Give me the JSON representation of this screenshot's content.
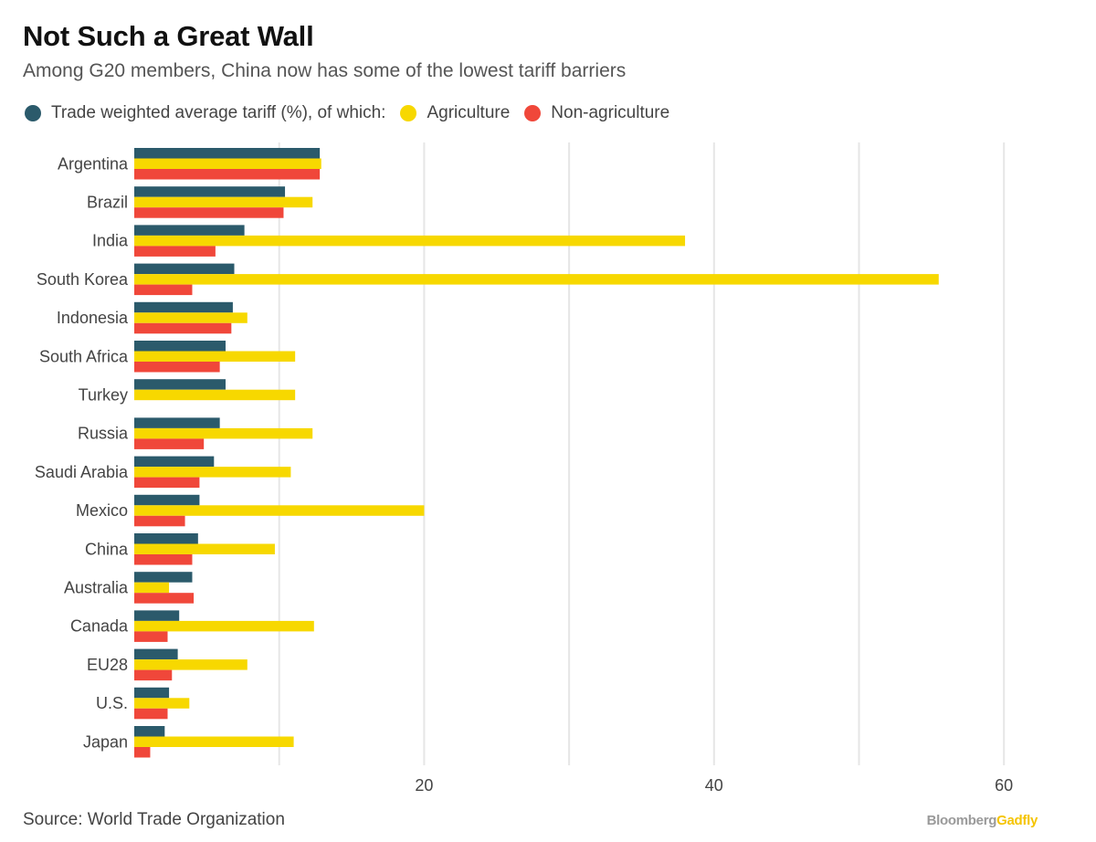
{
  "title": "Not Such a Great Wall",
  "subtitle": "Among G20 members, China now has some of the lowest tariff barriers",
  "legend": {
    "items": [
      {
        "label": "Trade weighted average tariff (%), of which:",
        "color": "#2b5a6b"
      },
      {
        "label": "Agriculture",
        "color": "#f7d800"
      },
      {
        "label": "Non-agriculture",
        "color": "#f0473a"
      }
    ]
  },
  "source": "Source: World Trade Organization",
  "brand": {
    "part1": "Bloomberg",
    "part2": "Gadfly"
  },
  "chart_data": {
    "type": "bar",
    "orientation": "horizontal",
    "title": "Not Such a Great Wall",
    "subtitle": "Among G20 members, China now has some of the lowest tariff barriers",
    "xlabel": "",
    "ylabel": "",
    "xlim": [
      0,
      60
    ],
    "xticks": [
      20,
      40,
      60
    ],
    "grid": true,
    "legend_position": "top",
    "categories": [
      "Argentina",
      "Brazil",
      "India",
      "South Korea",
      "Indonesia",
      "South Africa",
      "Turkey",
      "Russia",
      "Saudi Arabia",
      "Mexico",
      "China",
      "Australia",
      "Canada",
      "EU28",
      "U.S.",
      "Japan"
    ],
    "series": [
      {
        "name": "Trade weighted average tariff (%), of which:",
        "color": "#2b5a6b",
        "values": [
          12.8,
          10.4,
          7.6,
          6.9,
          6.8,
          6.3,
          6.3,
          5.9,
          5.5,
          4.5,
          4.4,
          4.0,
          3.1,
          3.0,
          2.4,
          2.1
        ]
      },
      {
        "name": "Agriculture",
        "color": "#f7d800",
        "values": [
          12.9,
          12.3,
          38.0,
          55.5,
          7.8,
          11.1,
          11.1,
          12.3,
          10.8,
          20.0,
          9.7,
          2.4,
          12.4,
          7.8,
          3.8,
          11.0
        ]
      },
      {
        "name": "Non-agriculture",
        "color": "#f0473a",
        "values": [
          12.8,
          10.3,
          5.6,
          4.0,
          6.7,
          5.9,
          null,
          4.8,
          4.5,
          3.5,
          4.0,
          4.1,
          2.3,
          2.6,
          2.3,
          1.1
        ]
      }
    ]
  }
}
